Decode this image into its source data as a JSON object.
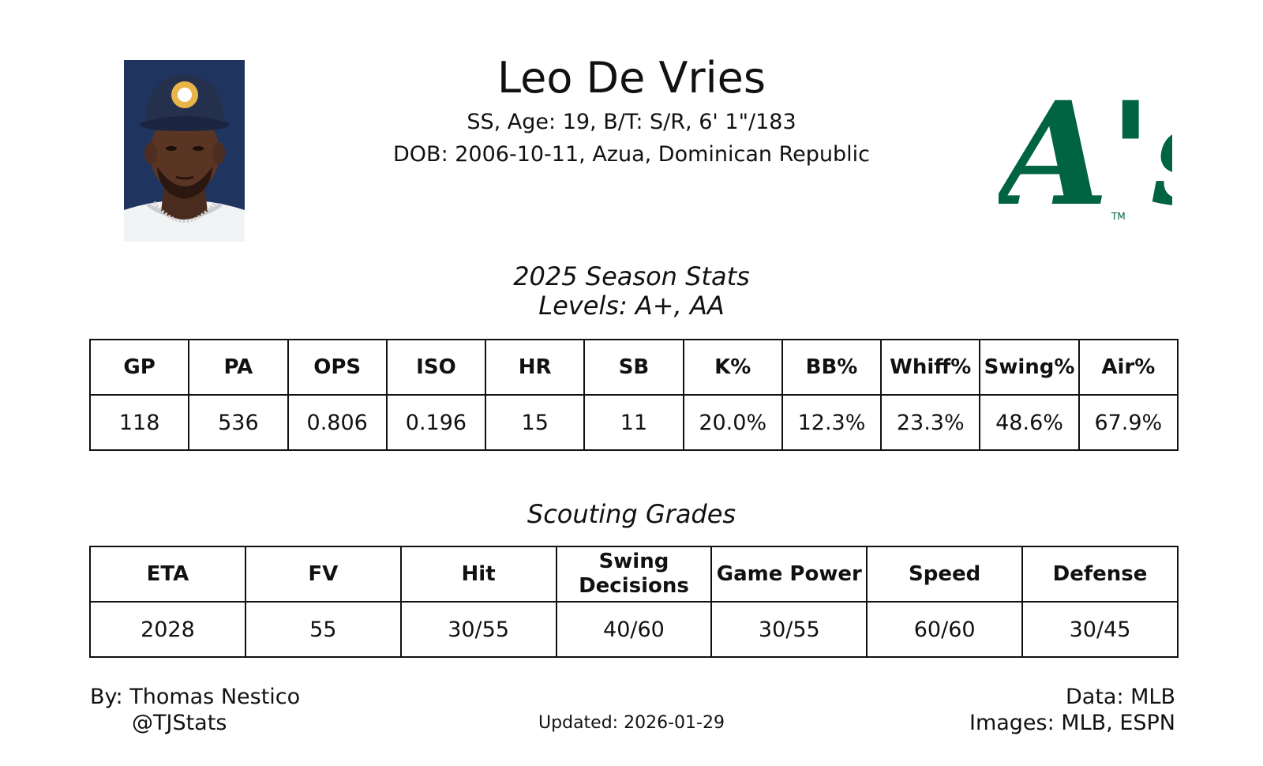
{
  "player": {
    "name": "Leo De Vries",
    "info_line1": "SS, Age: 19, B/T: S/R, 6' 1\"/183",
    "info_line2": "DOB: 2006-10-11, Azua, Dominican Republic"
  },
  "team_logo": {
    "text": "A's",
    "trademark": "TM",
    "color": "#006341"
  },
  "season_stats": {
    "title": "2025 Season Stats",
    "levels": "Levels: A+, AA",
    "columns": [
      "GP",
      "PA",
      "OPS",
      "ISO",
      "HR",
      "SB",
      "K%",
      "BB%",
      "Whiff%",
      "Swing%",
      "Air%"
    ],
    "values": [
      "118",
      "536",
      "0.806",
      "0.196",
      "15",
      "11",
      "20.0%",
      "12.3%",
      "23.3%",
      "48.6%",
      "67.9%"
    ]
  },
  "scouting_grades": {
    "title": "Scouting Grades",
    "columns": [
      "ETA",
      "FV",
      "Hit",
      "Swing Decisions",
      "Game Power",
      "Speed",
      "Defense"
    ],
    "values": [
      "2028",
      "55",
      "30/55",
      "40/60",
      "30/55",
      "60/60",
      "30/45"
    ]
  },
  "footer": {
    "author": "By: Thomas Nestico",
    "handle": "@TJStats",
    "updated": "Updated: 2026-01-29",
    "data_source": "Data: MLB",
    "images_source": "Images: MLB, ESPN"
  }
}
